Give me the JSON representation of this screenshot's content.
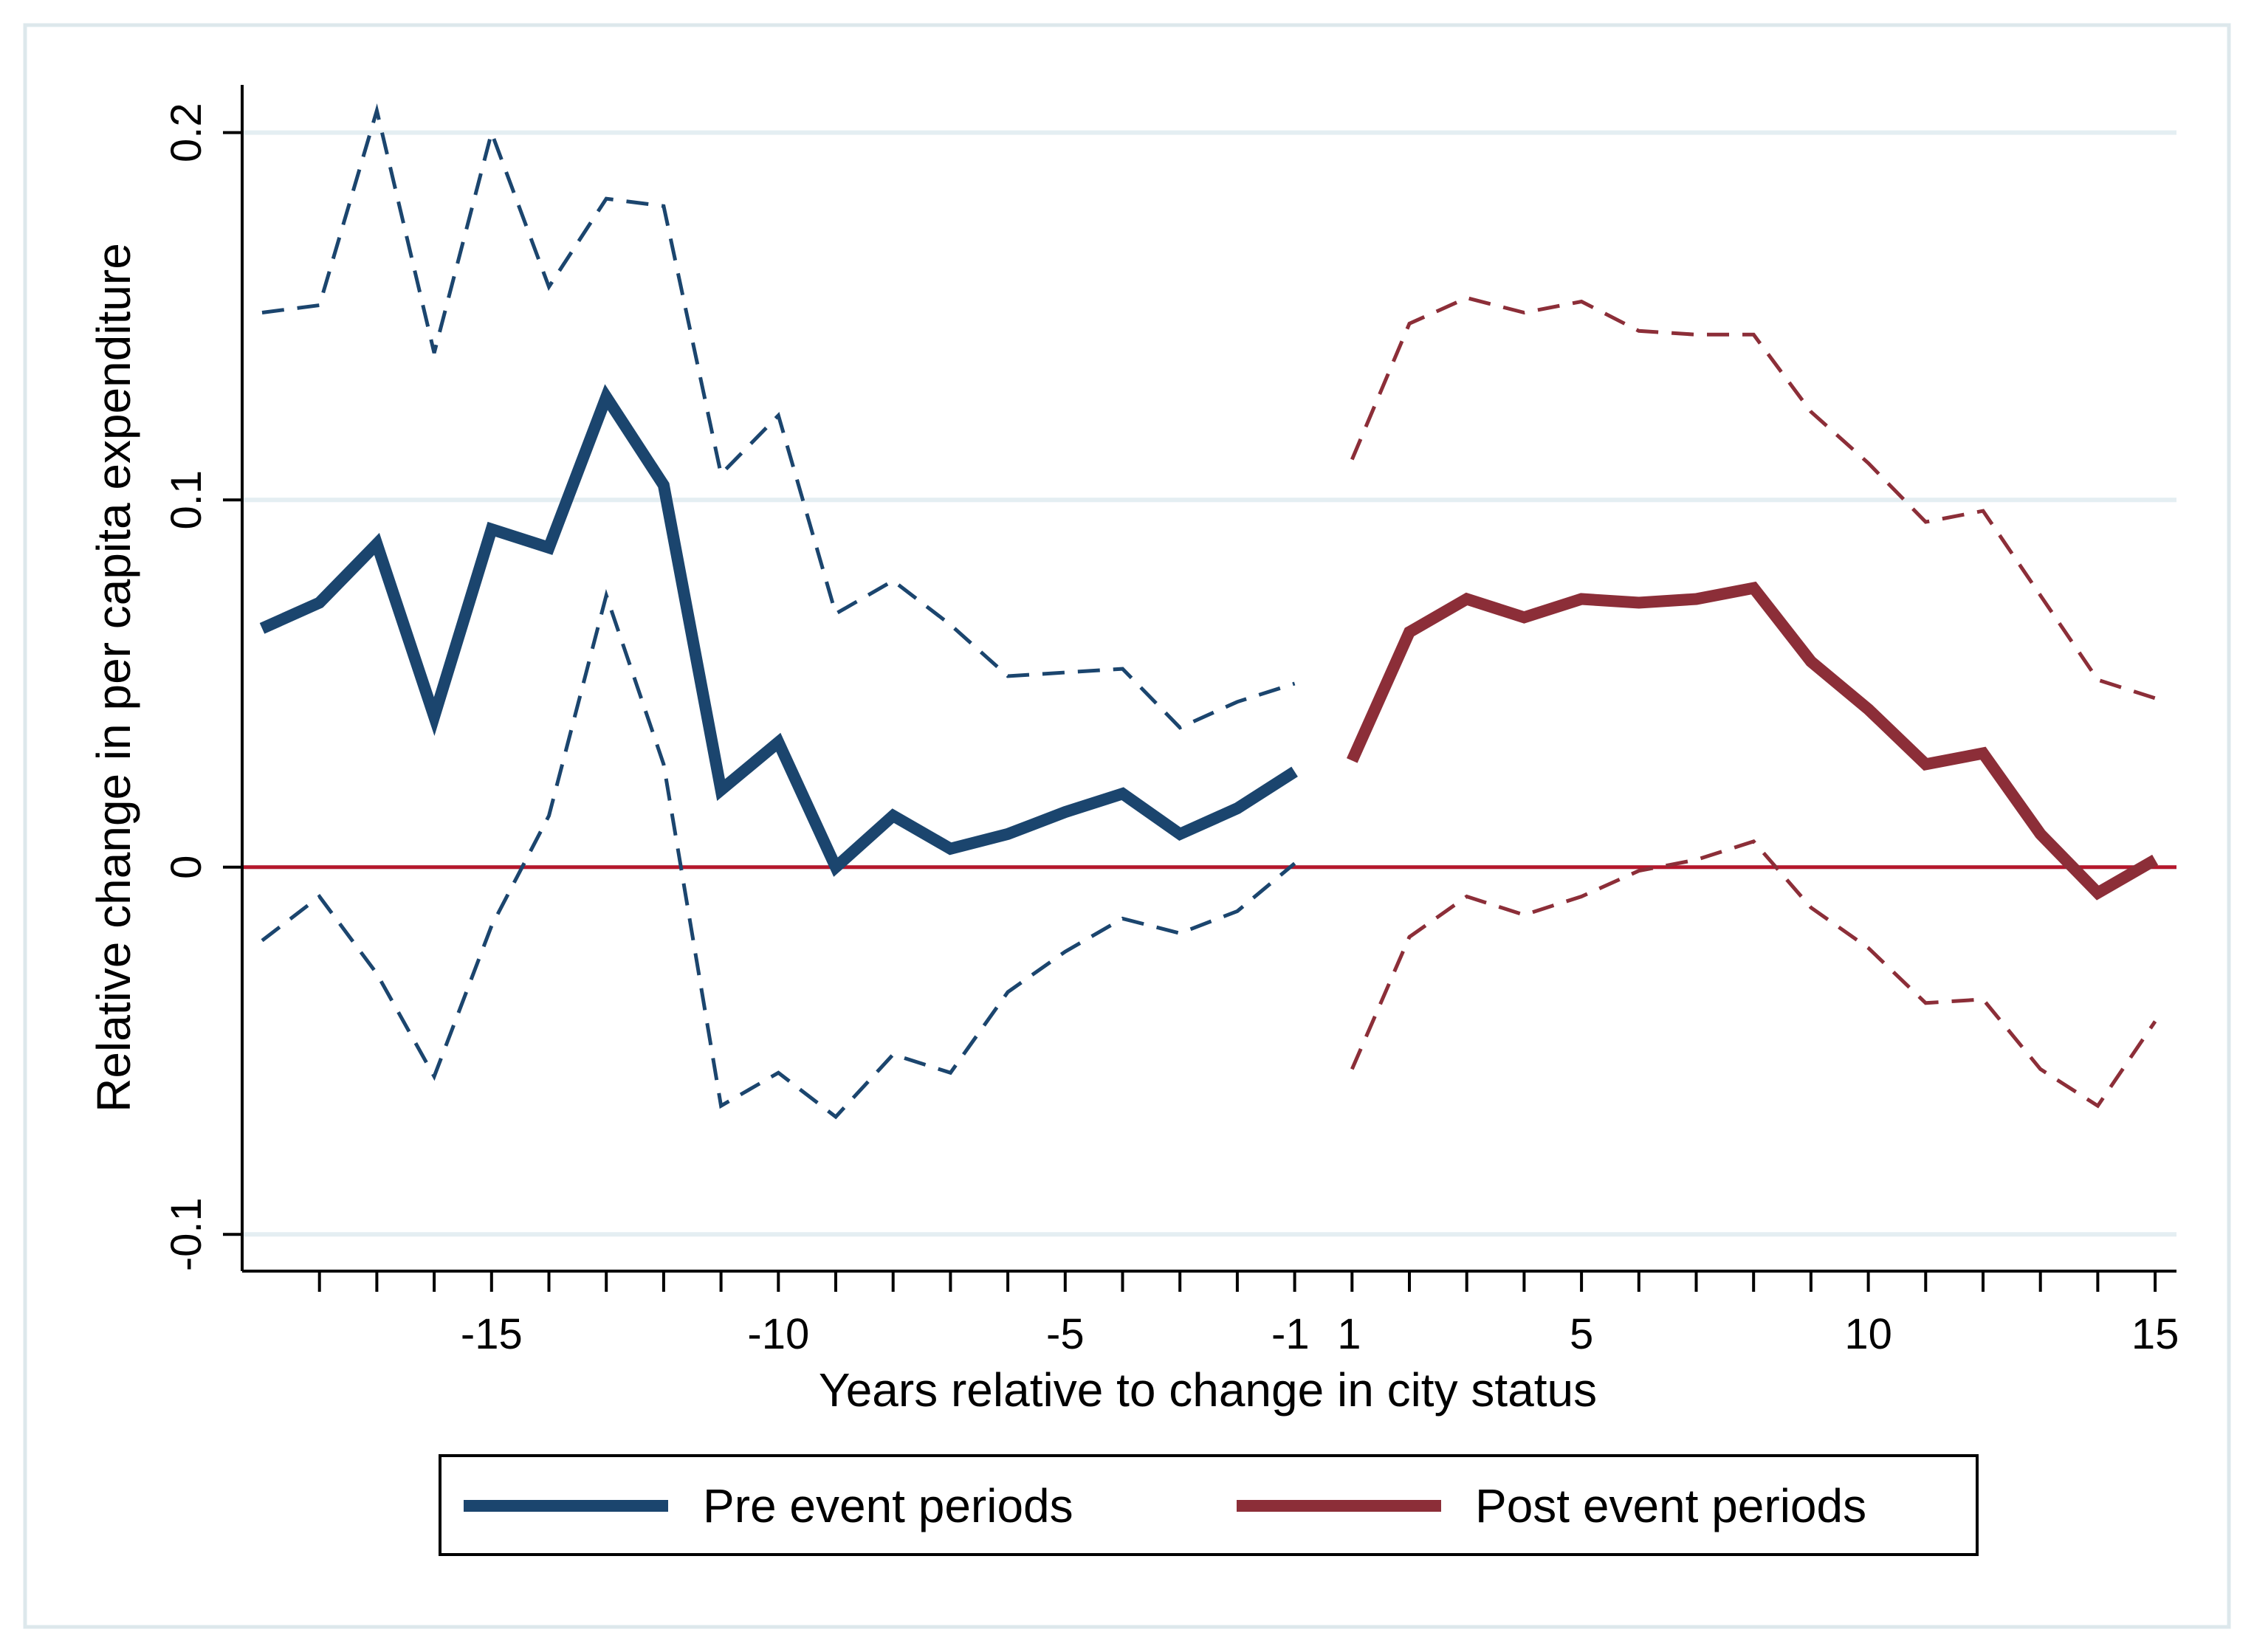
{
  "chart_data": {
    "type": "line",
    "title": "",
    "xlabel": "Years relative to change in city status",
    "ylabel": "Relative change in per capita expenditure",
    "xlim": [
      -19.5,
      15.5
    ],
    "ylim": [
      -0.11,
      0.213
    ],
    "x_ticks": [
      {
        "value": -15,
        "label": "-15"
      },
      {
        "value": -10,
        "label": "-10"
      },
      {
        "value": -5,
        "label": "-5"
      },
      {
        "value": -1,
        "label": "-1"
      },
      {
        "value": 1,
        "label": "1"
      },
      {
        "value": 5,
        "label": "5"
      },
      {
        "value": 10,
        "label": "10"
      },
      {
        "value": 15,
        "label": "15"
      }
    ],
    "x_minor_ticks": [
      -18,
      -17,
      -16,
      -15,
      -14,
      -13,
      -12,
      -11,
      -10,
      -9,
      -8,
      -7,
      -6,
      -5,
      -4,
      -3,
      -2,
      -1,
      1,
      2,
      3,
      4,
      5,
      6,
      7,
      8,
      9,
      10,
      11,
      12,
      13,
      14,
      15
    ],
    "y_ticks": [
      {
        "value": -0.1,
        "label": "-0.1"
      },
      {
        "value": 0,
        "label": "0"
      },
      {
        "value": 0.1,
        "label": "0.1"
      },
      {
        "value": 0.2,
        "label": "0.2"
      }
    ],
    "grid": true,
    "reference_line": {
      "y": 0,
      "color": "#b5172c"
    },
    "legend": {
      "position": "bottom",
      "entries": [
        "Pre event periods",
        "Post event periods"
      ]
    },
    "series": [
      {
        "name": "Pre event periods",
        "color": "#1b456e",
        "style": "solid",
        "role": "estimate",
        "x": [
          -19,
          -18,
          -17,
          -16,
          -15,
          -14,
          -13,
          -12,
          -11,
          -10,
          -9,
          -8,
          -7,
          -6,
          -5,
          -4,
          -3,
          -2,
          -1
        ],
        "values": [
          0.065,
          0.072,
          0.088,
          0.041,
          0.092,
          0.087,
          0.128,
          0.104,
          0.021,
          0.034,
          0.0,
          0.014,
          0.005,
          0.009,
          0.015,
          0.02,
          0.009,
          0.016,
          0.026
        ]
      },
      {
        "name": "Pre event upper CI",
        "color": "#1b456e",
        "style": "dashed",
        "role": "ci",
        "x": [
          -19,
          -18,
          -17,
          -16,
          -15,
          -14,
          -13,
          -12,
          -11,
          -10,
          -9,
          -8,
          -7,
          -6,
          -5,
          -4,
          -3,
          -2,
          -1
        ],
        "values": [
          0.151,
          0.153,
          0.206,
          0.14,
          0.2,
          0.158,
          0.182,
          0.18,
          0.107,
          0.123,
          0.069,
          0.078,
          0.066,
          0.052,
          0.053,
          0.054,
          0.038,
          0.045,
          0.05
        ]
      },
      {
        "name": "Pre event lower CI",
        "color": "#1b456e",
        "style": "dashed",
        "role": "ci",
        "x": [
          -19,
          -18,
          -17,
          -16,
          -15,
          -14,
          -13,
          -12,
          -11,
          -10,
          -9,
          -8,
          -7,
          -6,
          -5,
          -4,
          -3,
          -2,
          -1
        ],
        "values": [
          -0.02,
          -0.008,
          -0.029,
          -0.057,
          -0.016,
          0.014,
          0.074,
          0.028,
          -0.065,
          -0.056,
          -0.068,
          -0.051,
          -0.056,
          -0.034,
          -0.023,
          -0.014,
          -0.018,
          -0.012,
          0.001
        ]
      },
      {
        "name": "Post event periods",
        "color": "#8c2e38",
        "style": "solid",
        "role": "estimate",
        "x": [
          1,
          2,
          3,
          4,
          5,
          6,
          7,
          8,
          9,
          10,
          11,
          12,
          13,
          14,
          15
        ],
        "values": [
          0.029,
          0.064,
          0.073,
          0.068,
          0.073,
          0.072,
          0.073,
          0.076,
          0.056,
          0.043,
          0.028,
          0.031,
          0.009,
          -0.007,
          0.002
        ]
      },
      {
        "name": "Post event upper CI",
        "color": "#8c2e38",
        "style": "dashed",
        "role": "ci",
        "x": [
          1,
          2,
          3,
          4,
          5,
          6,
          7,
          8,
          9,
          10,
          11,
          12,
          13,
          14,
          15
        ],
        "values": [
          0.111,
          0.148,
          0.155,
          0.151,
          0.154,
          0.146,
          0.145,
          0.145,
          0.124,
          0.11,
          0.094,
          0.097,
          0.074,
          0.051,
          0.046
        ]
      },
      {
        "name": "Post event lower CI",
        "color": "#8c2e38",
        "style": "dashed",
        "role": "ci",
        "x": [
          1,
          2,
          3,
          4,
          5,
          6,
          7,
          8,
          9,
          10,
          11,
          12,
          13,
          14,
          15
        ],
        "values": [
          -0.055,
          -0.019,
          -0.008,
          -0.013,
          -0.008,
          -0.001,
          0.002,
          0.007,
          -0.011,
          -0.022,
          -0.037,
          -0.036,
          -0.055,
          -0.065,
          -0.042
        ]
      }
    ]
  }
}
